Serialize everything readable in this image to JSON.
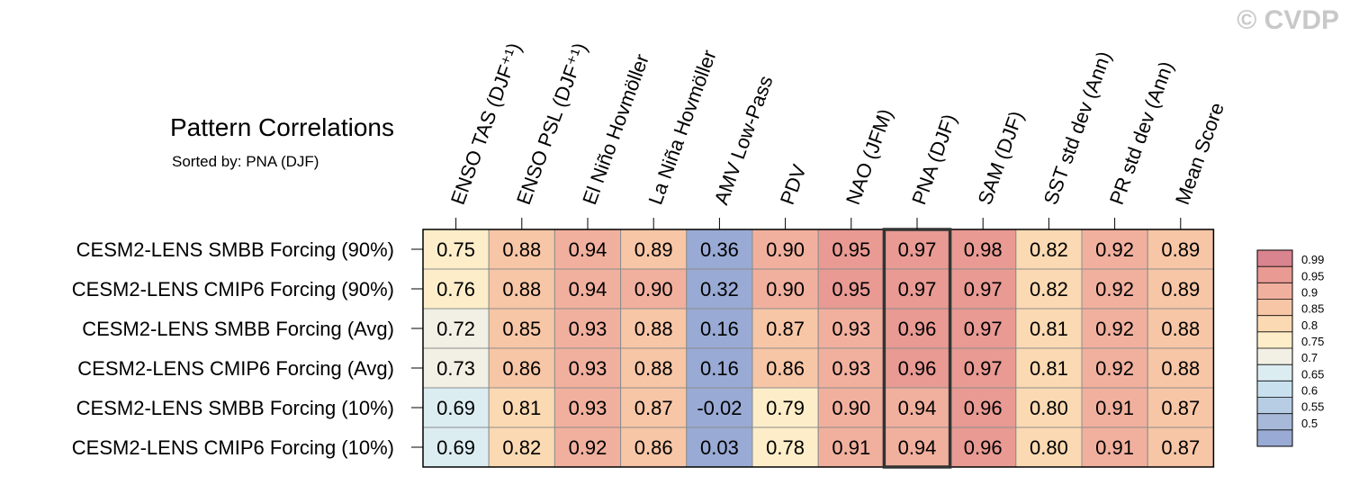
{
  "watermark": "© CVDP",
  "chart_data": {
    "type": "heatmap",
    "title": "Pattern Correlations",
    "subtitle": "Sorted by: PNA (DJF)",
    "columns": [
      "ENSO TAS (DJF⁺¹)",
      "ENSO PSL (DJF⁺¹)",
      "El Niño Hovmöller",
      "La Niña Hovmöller",
      "AMV Low-Pass",
      "PDV",
      "NAO (JFM)",
      "PNA (DJF)",
      "SAM (DJF)",
      "SST std dev (Ann)",
      "PR std dev (Ann)",
      "Mean Score"
    ],
    "rows": [
      "CESM2-LENS SMBB Forcing (90%)",
      "CESM2-LENS CMIP6 Forcing (90%)",
      "CESM2-LENS SMBB Forcing (Avg)",
      "CESM2-LENS CMIP6 Forcing (Avg)",
      "CESM2-LENS SMBB Forcing (10%)",
      "CESM2-LENS CMIP6 Forcing (10%)"
    ],
    "values": [
      [
        "0.75",
        "0.88",
        "0.94",
        "0.89",
        "0.36",
        "0.90",
        "0.95",
        "0.97",
        "0.98",
        "0.82",
        "0.92",
        "0.89"
      ],
      [
        "0.76",
        "0.88",
        "0.94",
        "0.90",
        "0.32",
        "0.90",
        "0.95",
        "0.97",
        "0.97",
        "0.82",
        "0.92",
        "0.89"
      ],
      [
        "0.72",
        "0.85",
        "0.93",
        "0.88",
        "0.16",
        "0.87",
        "0.93",
        "0.96",
        "0.97",
        "0.81",
        "0.92",
        "0.88"
      ],
      [
        "0.73",
        "0.86",
        "0.93",
        "0.88",
        "0.16",
        "0.86",
        "0.93",
        "0.96",
        "0.97",
        "0.81",
        "0.92",
        "0.88"
      ],
      [
        "0.69",
        "0.81",
        "0.93",
        "0.87",
        "-0.02",
        "0.79",
        "0.90",
        "0.94",
        "0.96",
        "0.80",
        "0.91",
        "0.87"
      ],
      [
        "0.69",
        "0.82",
        "0.92",
        "0.86",
        "0.03",
        "0.78",
        "0.91",
        "0.94",
        "0.96",
        "0.80",
        "0.91",
        "0.87"
      ]
    ],
    "highlighted_column": "PNA (DJF)",
    "colorbar": {
      "levels": [
        "0.99",
        "0.95",
        "0.9",
        "0.85",
        "0.8",
        "0.75",
        "0.7",
        "0.65",
        "0.6",
        "0.55",
        "0.5"
      ],
      "colors": [
        "#d9848f",
        "#e89a93",
        "#f1b09e",
        "#f7c6a6",
        "#fbdab3",
        "#fdeec9",
        "#f2f0e4",
        "#dcedf2",
        "#c9e1ee",
        "#b7cde4",
        "#a7b8d9",
        "#99aad4"
      ]
    }
  }
}
